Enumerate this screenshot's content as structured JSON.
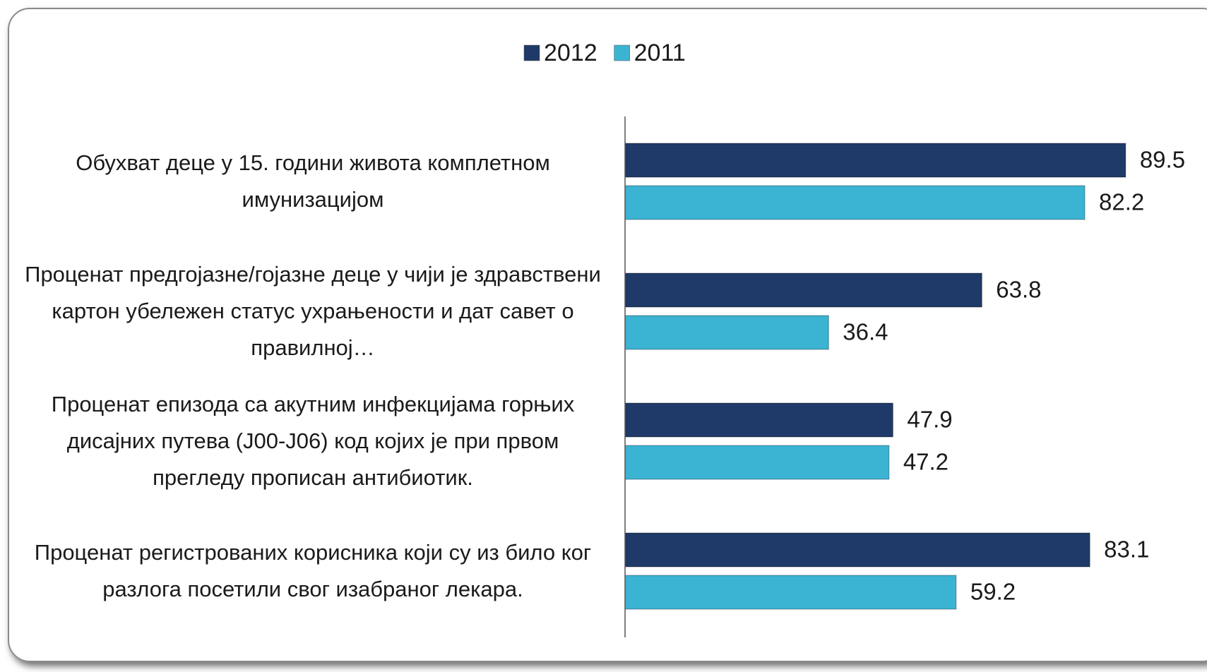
{
  "chart_data": {
    "type": "bar",
    "orientation": "horizontal",
    "categories": [
      "Обухват деце у 15. години живота комплетном имунизацијом",
      "Проценат предгојазне/гојазне деце у чији је здравствени картон убележен статус ухрањености и дат савет о правилној…",
      "Проценат епизода са акутним инфекцијама горњих дисајних путева (J00-J06) код којих је при првом прегледу прописан антибиотик.",
      "Проценат регистрованих корисника који су из било ког разлога посетили свог изабраног лекара."
    ],
    "series": [
      {
        "name": "2012",
        "color": "#1f3a68",
        "values": [
          89.5,
          63.8,
          47.9,
          83.1
        ]
      },
      {
        "name": "2011",
        "color": "#3bb3d3",
        "values": [
          82.2,
          36.4,
          47.2,
          59.2
        ]
      }
    ],
    "xlim": [
      0,
      100
    ],
    "legend": "top"
  }
}
